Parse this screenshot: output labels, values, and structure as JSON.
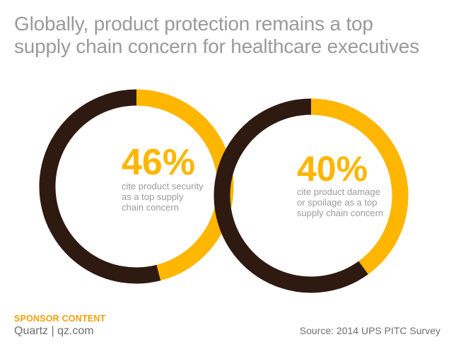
{
  "title_lines": [
    "Globally, product protection remains a top",
    "supply chain concern for healthcare executives"
  ],
  "chart_data": [
    {
      "type": "pie",
      "title": "",
      "value_label": "46%",
      "description_lines": [
        "cite product security",
        "as a top supply",
        "chain concern"
      ],
      "slices": [
        {
          "label": "cite product security as a top supply chain concern",
          "value": 46,
          "color": "#ffb600"
        },
        {
          "label": "other",
          "value": 54,
          "color": "#2f1a12"
        }
      ]
    },
    {
      "type": "pie",
      "title": "",
      "value_label": "40%",
      "description_lines": [
        "cite product damage",
        "or spoilage as a top",
        "supply chain concern"
      ],
      "slices": [
        {
          "label": "cite product damage or spoilage as a top supply chain concern",
          "value": 40,
          "color": "#ffb600"
        },
        {
          "label": "other",
          "value": 60,
          "color": "#2f1a12"
        }
      ]
    }
  ],
  "footer": {
    "sponsor": "SPONSOR CONTENT",
    "brand": "Quartz | qz.com",
    "source": "Source: 2014 UPS PITC Survey"
  }
}
